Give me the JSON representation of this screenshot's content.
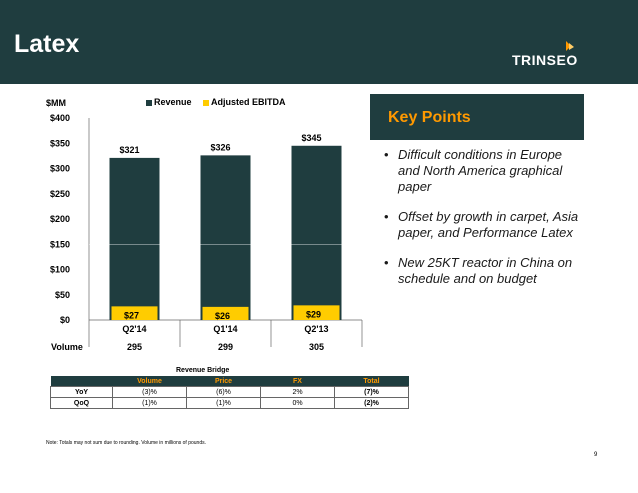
{
  "slide": {
    "title": "Latex",
    "logo_text": "TRINSEO",
    "page_number": "9",
    "note": "Note: Totals may not sum due to rounding.  Volume in millions of pounds.",
    "colors": {
      "header": "#1f3d3f",
      "accent": "#ff9900",
      "revenue": "#1f3d3f",
      "ebitda": "#ffcc00"
    }
  },
  "chart_data": {
    "type": "bar",
    "ylabel": "$MM",
    "ylim": [
      0,
      400
    ],
    "yticks": [
      "$0",
      "$50",
      "$100",
      "$150",
      "$200",
      "$250",
      "$300",
      "$350",
      "$400"
    ],
    "categories": [
      "Q2'14",
      "Q1'14",
      "Q2'13"
    ],
    "series": [
      {
        "name": "Revenue",
        "values": [
          321,
          326,
          345
        ],
        "labels": [
          "$321",
          "$326",
          "$345"
        ],
        "color": "#1f3d3f"
      },
      {
        "name": "Adjusted EBITDA",
        "values": [
          27,
          26,
          29
        ],
        "labels": [
          "$27",
          "$26",
          "$29"
        ],
        "color": "#ffcc00"
      }
    ],
    "volume": {
      "label": "Volume",
      "values": [
        "295",
        "299",
        "305"
      ]
    },
    "legend_position": "top"
  },
  "key_points": {
    "title": "Key Points",
    "items": [
      "Difficult conditions in Europe and North America graphical paper",
      "Offset by growth in carpet, Asia paper, and Performance Latex",
      "New 25KT reactor in China on schedule and on budget"
    ]
  },
  "revenue_bridge": {
    "title": "Revenue Bridge",
    "columns": [
      "Volume",
      "Price",
      "FX",
      "Total"
    ],
    "rows": [
      {
        "label": "YoY",
        "values": [
          "(3)%",
          "(6)%",
          "2%",
          "(7)%"
        ]
      },
      {
        "label": "QoQ",
        "values": [
          "(1)%",
          "(1)%",
          "0%",
          "(2)%"
        ]
      }
    ]
  }
}
